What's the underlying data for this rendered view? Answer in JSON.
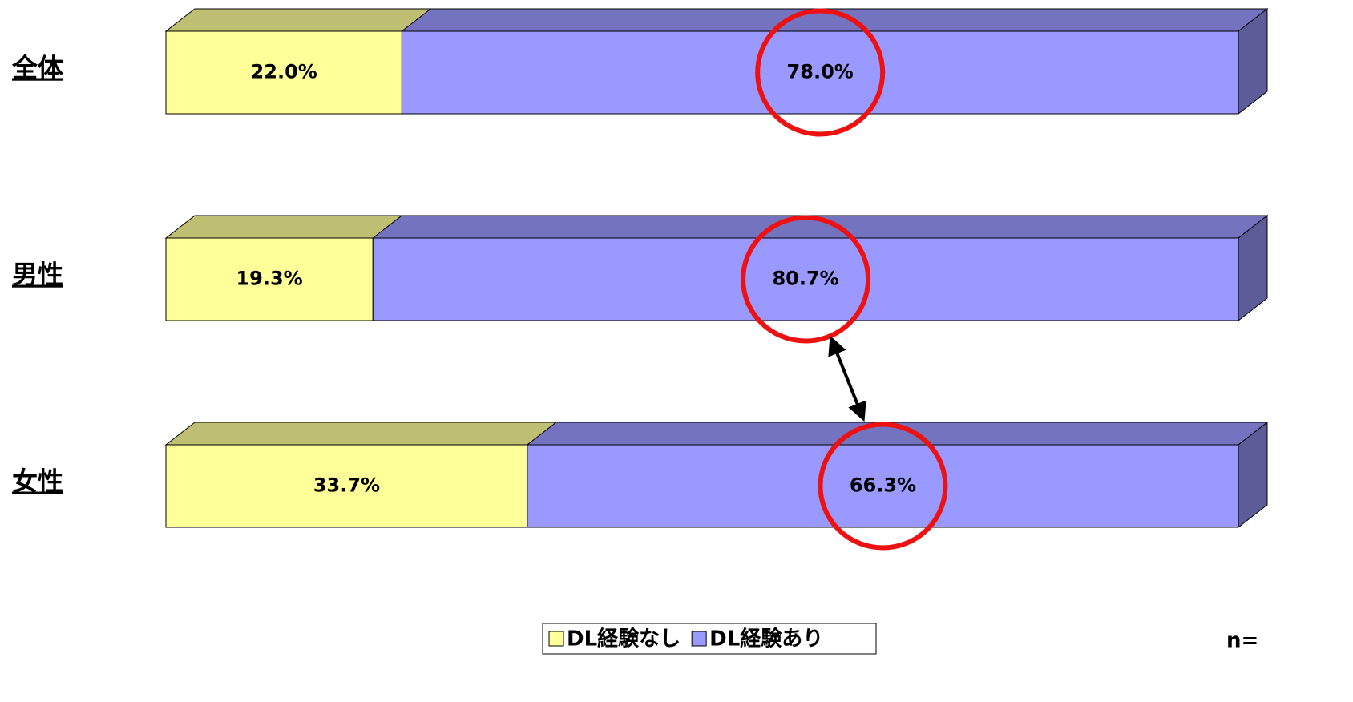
{
  "chart_data": {
    "type": "stacked-bar-horizontal",
    "categories": [
      "全体",
      "男性",
      "女性"
    ],
    "series": [
      {
        "name": "DL経験なし",
        "color": "#ffff99",
        "top_color": "#bfbf73",
        "values": [
          22.0,
          19.3,
          33.7
        ],
        "value_labels": [
          "22.0%",
          "19.3%",
          "33.7%"
        ]
      },
      {
        "name": "DL経験あり",
        "color": "#9999ff",
        "top_color": "#7373bf",
        "side_color": "#5c5c99",
        "values": [
          78.0,
          80.7,
          66.3
        ],
        "value_labels": [
          "78.0%",
          "80.7%",
          "66.3%"
        ]
      }
    ],
    "xlim": [
      0,
      100
    ],
    "note": "n="
  }
}
